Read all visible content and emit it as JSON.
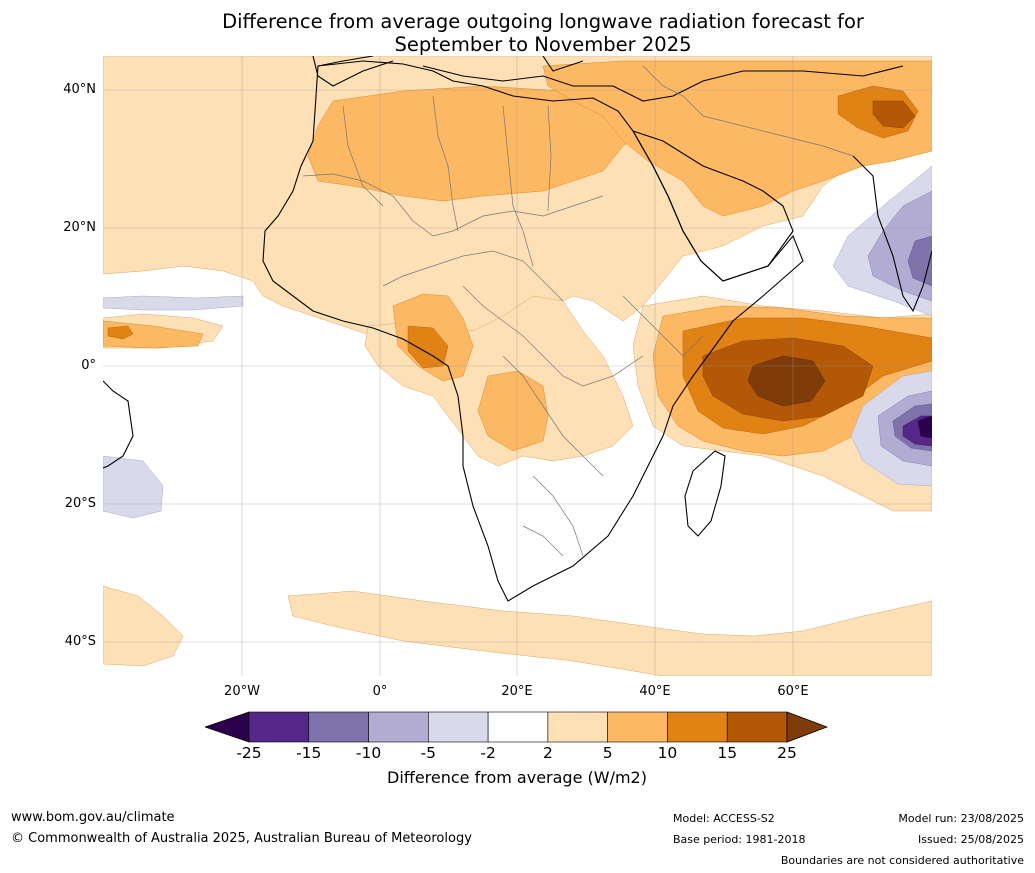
{
  "title_line1": "Difference from average outgoing longwave radiation forecast for",
  "title_line2": "September to November 2025",
  "lat_labels": [
    "40°N",
    "20°N",
    "0°",
    "20°S",
    "40°S"
  ],
  "lon_labels": [
    "20°W",
    "0°",
    "20°E",
    "40°E",
    "60°E"
  ],
  "colorbar": {
    "ticks": [
      "-25",
      "-15",
      "-10",
      "-5",
      "-2",
      "2",
      "5",
      "10",
      "15",
      "25"
    ],
    "colors": [
      "#2d004b",
      "#542788",
      "#8073ac",
      "#b2abd2",
      "#d8daeb",
      "#ffffff",
      "#fee0b6",
      "#fdb863",
      "#e08214",
      "#b35806",
      "#7f3b08"
    ],
    "label": "Difference from average (W/m2)"
  },
  "footer": {
    "site": "www.bom.gov.au/climate",
    "copyright": "© Commonwealth of Australia 2025, Australian Bureau of Meteorology",
    "model": "Model: ACCESS-S2",
    "base_period": "Base period: 1981-2018",
    "model_run": "Model run: 23/08/2025",
    "issued": "Issued: 25/08/2025",
    "disclaimer": "Boundaries are not considered authoritative"
  }
}
